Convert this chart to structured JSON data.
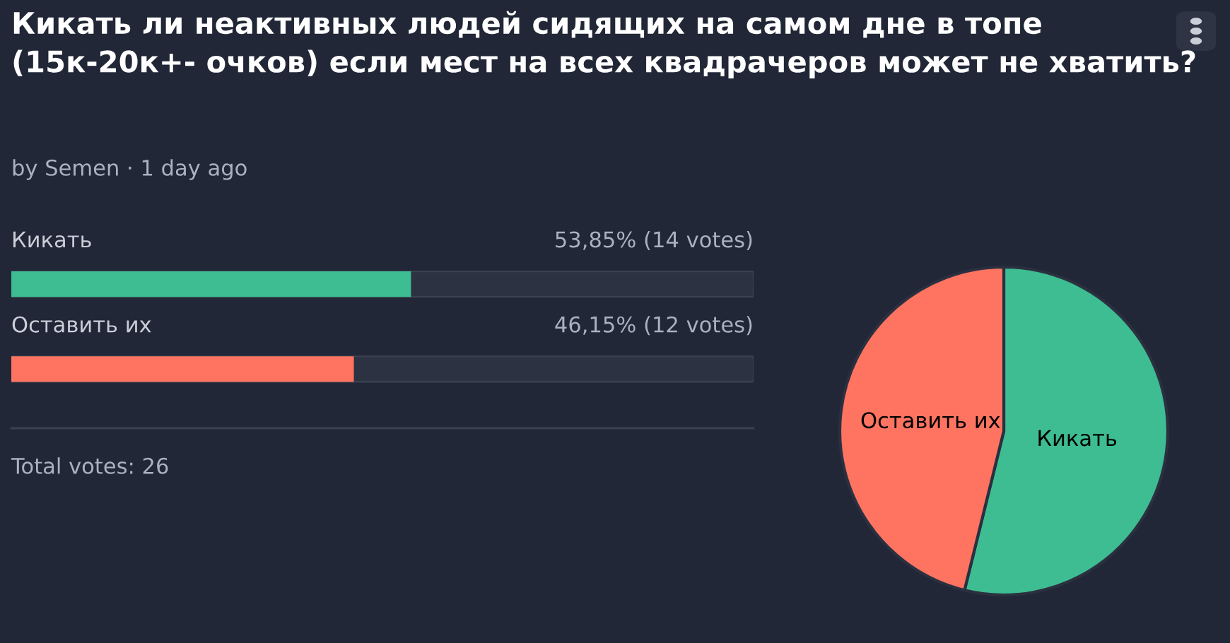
{
  "chart_data": [
    {
      "type": "bar",
      "orientation": "horizontal",
      "title": "Кикать ли неактивных людей сидящих на самом дне в топе (15к-20к+- очков) если мест на всех квадрачеров может не хватить?",
      "subtitle": "by Semen · 1 day ago",
      "categories": [
        "Кикать",
        "Оставить их"
      ],
      "values": [
        53.85,
        46.15
      ],
      "colors": [
        "#3dbd91",
        "#ff7461"
      ],
      "value_labels": [
        "53,85% (14 votes)",
        "46,15% (12 votes)"
      ],
      "xlim": [
        0,
        100
      ],
      "legend": false,
      "annotations": [
        "Total votes: 26"
      ]
    },
    {
      "type": "pie",
      "categories": [
        "Кикать",
        "Оставить их"
      ],
      "values": [
        53.85,
        46.15
      ],
      "colors": [
        "#3dbd91",
        "#ff7461"
      ],
      "legend": false
    }
  ]
}
